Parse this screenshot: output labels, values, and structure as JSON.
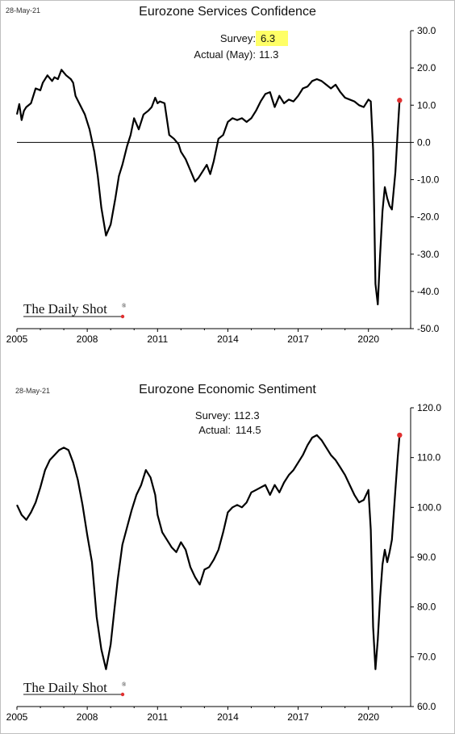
{
  "logo_text": "The Daily Shot",
  "logo_mark": "®",
  "chart_data": [
    {
      "type": "line",
      "date_stamp": "28-May-21",
      "title": "Eurozone Services Confidence",
      "notes": [
        {
          "label": "Survey:",
          "value": "6.3",
          "highlight": true
        },
        {
          "label": "Actual (May):",
          "value": "11.3",
          "highlight": false
        }
      ],
      "highlight_color": "#ffff66",
      "xlim": [
        2005,
        2021.8
      ],
      "x_ticks": [
        2005,
        2008,
        2011,
        2014,
        2017,
        2020
      ],
      "x_tick_labels": [
        "2005",
        "2008",
        "2011",
        "2014",
        "2017",
        "2020"
      ],
      "ylim": [
        -50,
        30
      ],
      "y_ticks": [
        30,
        20,
        10,
        0,
        -10,
        -20,
        -30,
        -40,
        -50
      ],
      "y_tick_labels": [
        "30.0",
        "20.0",
        "10.0",
        "0.0",
        "-10.0",
        "-20.0",
        "-30.0",
        "-40.0",
        "-50.0"
      ],
      "zero_line": true,
      "line_color": "#000000",
      "marker_color": "#e03030",
      "series": [
        {
          "x": [
            2005.0,
            2005.1,
            2005.2,
            2005.3,
            2005.4,
            2005.6,
            2005.8,
            2006.0,
            2006.1,
            2006.3,
            2006.5,
            2006.6,
            2006.75,
            2006.9,
            2007.1,
            2007.3,
            2007.4,
            2007.5,
            2007.7,
            2007.9,
            2008.1,
            2008.3,
            2008.45,
            2008.6,
            2008.8,
            2009.0,
            2009.2,
            2009.35,
            2009.5,
            2009.7,
            2009.85,
            2010.0,
            2010.2,
            2010.4,
            2010.6,
            2010.75,
            2010.9,
            2011.0,
            2011.1,
            2011.3,
            2011.5,
            2011.7,
            2011.9,
            2012.0,
            2012.2,
            2012.4,
            2012.6,
            2012.75,
            2012.9,
            2013.1,
            2013.25,
            2013.4,
            2013.6,
            2013.8,
            2014.0,
            2014.2,
            2014.4,
            2014.6,
            2014.8,
            2015.0,
            2015.2,
            2015.4,
            2015.6,
            2015.8,
            2016.0,
            2016.2,
            2016.4,
            2016.6,
            2016.8,
            2017.0,
            2017.2,
            2017.4,
            2017.6,
            2017.8,
            2018.0,
            2018.2,
            2018.4,
            2018.6,
            2018.8,
            2019.0,
            2019.2,
            2019.4,
            2019.6,
            2019.8,
            2020.0,
            2020.1,
            2020.2,
            2020.3,
            2020.4,
            2020.5,
            2020.6,
            2020.7,
            2020.8,
            2020.9,
            2021.0,
            2021.15,
            2021.25,
            2021.33
          ],
          "values": [
            7.5,
            10.3,
            6.0,
            8.5,
            9.5,
            10.5,
            14.5,
            14.0,
            16.0,
            18.0,
            16.5,
            17.5,
            17.0,
            19.5,
            18.0,
            17.0,
            16.0,
            12.5,
            10.0,
            7.5,
            3.5,
            -2.5,
            -9.0,
            -17.5,
            -25.0,
            -22.0,
            -15.0,
            -9.0,
            -6.0,
            -1.0,
            2.0,
            6.5,
            3.5,
            7.5,
            8.5,
            9.5,
            12.0,
            10.5,
            11.0,
            10.5,
            2.0,
            1.0,
            -0.5,
            -2.5,
            -4.5,
            -7.5,
            -10.5,
            -9.5,
            -8.0,
            -6.0,
            -8.5,
            -5.0,
            1.0,
            2.0,
            5.5,
            6.5,
            6.0,
            6.5,
            5.5,
            6.5,
            8.5,
            11.0,
            13.0,
            13.5,
            9.5,
            12.5,
            10.5,
            11.5,
            11.0,
            12.5,
            14.5,
            15.0,
            16.5,
            17.0,
            16.5,
            15.5,
            14.5,
            15.5,
            13.5,
            12.0,
            11.5,
            11.0,
            10.0,
            9.5,
            11.5,
            11.0,
            -2.0,
            -38.0,
            -43.5,
            -30.0,
            -18.5,
            -12.0,
            -15.0,
            -17.0,
            -18.0,
            -8.0,
            3.0,
            11.3
          ]
        }
      ]
    },
    {
      "type": "line",
      "date_stamp": "28-May-21",
      "title": "Eurozone Economic Sentiment",
      "notes": [
        {
          "label": "Survey:",
          "value": "112.3",
          "highlight": false
        },
        {
          "label": "Actual:",
          "value": "114.5",
          "highlight": false
        }
      ],
      "xlim": [
        2005,
        2021.8
      ],
      "x_ticks": [
        2005,
        2008,
        2011,
        2014,
        2017,
        2020
      ],
      "x_tick_labels": [
        "2005",
        "2008",
        "2011",
        "2014",
        "2017",
        "2020"
      ],
      "ylim": [
        60,
        120
      ],
      "y_ticks": [
        120,
        110,
        100,
        90,
        80,
        70,
        60
      ],
      "y_tick_labels": [
        "120.0",
        "110.0",
        "100.0",
        "90.0",
        "80.0",
        "70.0",
        "60.0"
      ],
      "zero_line": false,
      "line_color": "#000000",
      "marker_color": "#e03030",
      "series": [
        {
          "x": [
            2005.0,
            2005.2,
            2005.4,
            2005.6,
            2005.8,
            2006.0,
            2006.2,
            2006.4,
            2006.6,
            2006.8,
            2007.0,
            2007.2,
            2007.4,
            2007.6,
            2007.8,
            2008.0,
            2008.2,
            2008.4,
            2008.6,
            2008.8,
            2009.0,
            2009.15,
            2009.3,
            2009.5,
            2009.7,
            2009.9,
            2010.1,
            2010.3,
            2010.5,
            2010.7,
            2010.9,
            2011.0,
            2011.2,
            2011.4,
            2011.6,
            2011.8,
            2012.0,
            2012.2,
            2012.4,
            2012.6,
            2012.8,
            2013.0,
            2013.2,
            2013.4,
            2013.6,
            2013.8,
            2014.0,
            2014.2,
            2014.4,
            2014.6,
            2014.8,
            2015.0,
            2015.2,
            2015.4,
            2015.6,
            2015.8,
            2016.0,
            2016.2,
            2016.4,
            2016.6,
            2016.8,
            2017.0,
            2017.2,
            2017.4,
            2017.6,
            2017.8,
            2018.0,
            2018.2,
            2018.4,
            2018.6,
            2018.8,
            2019.0,
            2019.2,
            2019.4,
            2019.6,
            2019.8,
            2020.0,
            2020.1,
            2020.2,
            2020.3,
            2020.4,
            2020.5,
            2020.6,
            2020.7,
            2020.8,
            2020.9,
            2021.0,
            2021.15,
            2021.25,
            2021.33
          ],
          "values": [
            100.5,
            98.5,
            97.5,
            99.0,
            101.0,
            104.0,
            107.5,
            109.5,
            110.5,
            111.5,
            112.0,
            111.5,
            109.0,
            105.5,
            100.5,
            94.5,
            89.0,
            78.0,
            71.5,
            67.5,
            72.5,
            79.0,
            85.5,
            92.5,
            96.0,
            99.5,
            102.5,
            104.5,
            107.5,
            106.0,
            102.5,
            98.5,
            95.0,
            93.5,
            92.0,
            91.0,
            93.0,
            91.5,
            88.0,
            86.0,
            84.5,
            87.5,
            88.0,
            89.5,
            91.5,
            95.0,
            99.0,
            100.0,
            100.5,
            100.0,
            101.0,
            103.0,
            103.5,
            104.0,
            104.5,
            102.5,
            104.5,
            103.0,
            105.0,
            106.5,
            107.5,
            109.0,
            110.5,
            112.5,
            114.0,
            114.5,
            113.5,
            112.0,
            110.5,
            109.5,
            108.0,
            106.5,
            104.5,
            102.5,
            101.0,
            101.5,
            103.5,
            95.5,
            76.0,
            67.5,
            73.5,
            82.0,
            88.5,
            91.5,
            89.0,
            91.0,
            93.5,
            103.5,
            110.0,
            114.5
          ]
        }
      ]
    }
  ]
}
